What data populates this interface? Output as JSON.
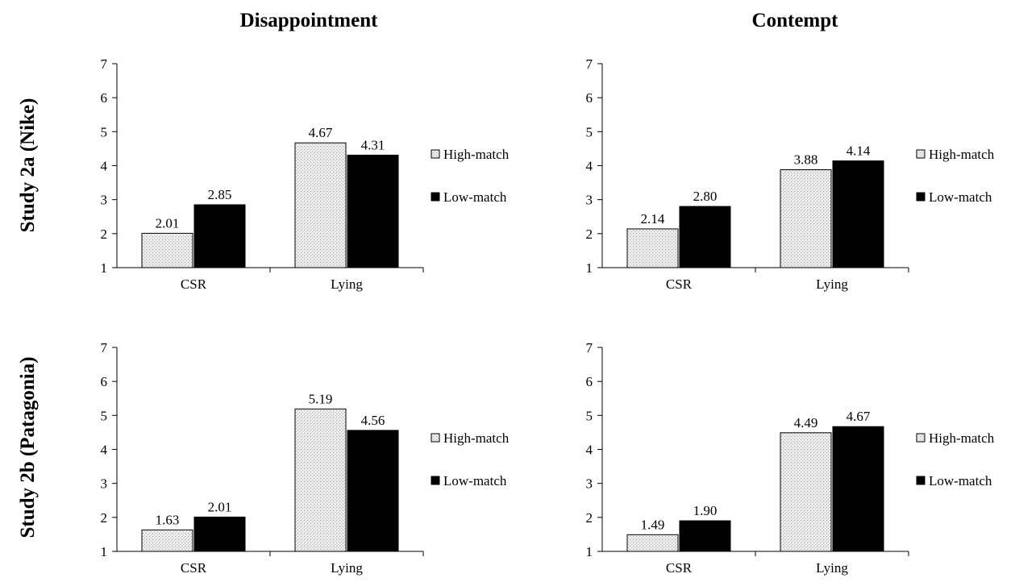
{
  "columns": [
    "Disappointment",
    "Contempt"
  ],
  "rows": [
    "Study 2a (Nike)",
    "Study 2b (Patagonia)"
  ],
  "chart_data": [
    {
      "type": "bar",
      "study": "Study 2a (Nike)",
      "measure": "Disappointment",
      "categories": [
        "CSR",
        "Lying"
      ],
      "ylim": [
        1,
        7
      ],
      "yticks": [
        1,
        2,
        3,
        4,
        5,
        6,
        7
      ],
      "series": [
        {
          "name": "High-match",
          "values": [
            2.01,
            4.67
          ],
          "labels": [
            "2.01",
            "4.67"
          ]
        },
        {
          "name": "Low-match",
          "values": [
            2.85,
            4.31
          ],
          "labels": [
            "2.85",
            "4.31"
          ]
        }
      ],
      "legend": "right",
      "grid": false
    },
    {
      "type": "bar",
      "study": "Study 2a (Nike)",
      "measure": "Contempt",
      "categories": [
        "CSR",
        "Lying"
      ],
      "ylim": [
        1,
        7
      ],
      "yticks": [
        1,
        2,
        3,
        4,
        5,
        6,
        7
      ],
      "series": [
        {
          "name": "High-match",
          "values": [
            2.14,
            3.88
          ],
          "labels": [
            "2.14",
            "3.88"
          ]
        },
        {
          "name": "Low-match",
          "values": [
            2.8,
            4.14
          ],
          "labels": [
            "2.80",
            "4.14"
          ]
        }
      ],
      "legend": "right",
      "grid": false
    },
    {
      "type": "bar",
      "study": "Study 2b (Patagonia)",
      "measure": "Disappointment",
      "categories": [
        "CSR",
        "Lying"
      ],
      "ylim": [
        1,
        7
      ],
      "yticks": [
        1,
        2,
        3,
        4,
        5,
        6,
        7
      ],
      "series": [
        {
          "name": "High-match",
          "values": [
            1.63,
            5.19
          ],
          "labels": [
            "1.63",
            "5.19"
          ]
        },
        {
          "name": "Low-match",
          "values": [
            2.01,
            4.56
          ],
          "labels": [
            "2.01",
            "4.56"
          ]
        }
      ],
      "legend": "right",
      "grid": false
    },
    {
      "type": "bar",
      "study": "Study 2b (Patagonia)",
      "measure": "Contempt",
      "categories": [
        "CSR",
        "Lying"
      ],
      "ylim": [
        1,
        7
      ],
      "yticks": [
        1,
        2,
        3,
        4,
        5,
        6,
        7
      ],
      "series": [
        {
          "name": "High-match",
          "values": [
            1.49,
            4.49
          ],
          "labels": [
            "1.49",
            "4.49"
          ]
        },
        {
          "name": "Low-match",
          "values": [
            1.9,
            4.67
          ],
          "labels": [
            "1.90",
            "4.67"
          ]
        }
      ],
      "legend": "right",
      "grid": false
    }
  ],
  "colors": {
    "high_match_fill": "#ececec",
    "high_match_dot": "#9a9a9a",
    "low_match_fill": "#000000",
    "axis": "#000000"
  }
}
